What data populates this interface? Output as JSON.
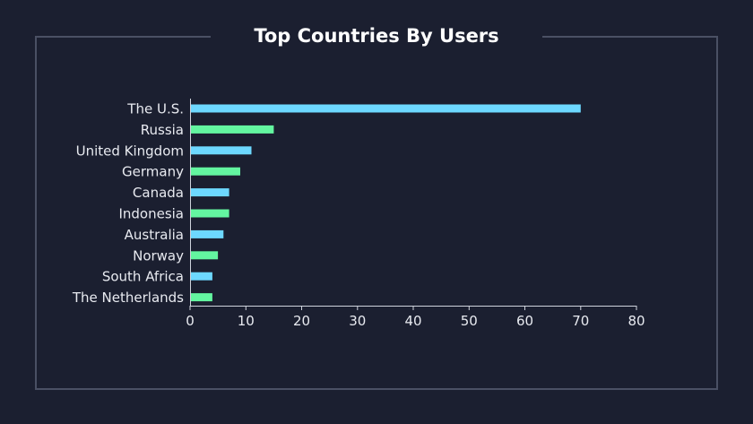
{
  "chart_data": {
    "type": "bar",
    "orientation": "horizontal",
    "title": "Top Countries By Users",
    "categories": [
      "The U.S.",
      "Russia",
      "United Kingdom",
      "Germany",
      "Canada",
      "Indonesia",
      "Australia",
      "Norway",
      "South Africa",
      "The Netherlands"
    ],
    "values": [
      70,
      15,
      11,
      9,
      7,
      7,
      6,
      5,
      4,
      4
    ],
    "xlim": [
      0,
      80
    ],
    "x_ticks": [
      0,
      10,
      20,
      30,
      40,
      50,
      60,
      70,
      80
    ],
    "xlabel": "",
    "ylabel": "",
    "grid": false,
    "bar_colors": [
      "#6dd8ff",
      "#63f5a0"
    ]
  }
}
